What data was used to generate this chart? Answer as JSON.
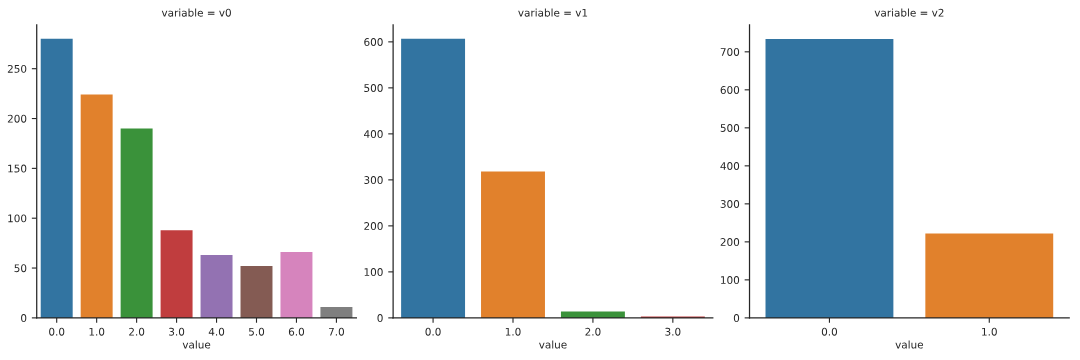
{
  "chart_data": [
    {
      "type": "bar",
      "title": "variable = v0",
      "xlabel": "value",
      "categories": [
        "0.0",
        "1.0",
        "2.0",
        "3.0",
        "4.0",
        "5.0",
        "6.0",
        "7.0"
      ],
      "values": [
        280,
        224,
        190,
        88,
        63,
        52,
        66,
        11
      ],
      "colors": [
        "#3274a1",
        "#e1812c",
        "#3a923a",
        "#c03d3e",
        "#9372b2",
        "#845b53",
        "#d684bd",
        "#7f7f7f"
      ],
      "ylim": [
        0,
        294
      ],
      "yticks": [
        0,
        50,
        100,
        150,
        200,
        250
      ]
    },
    {
      "type": "bar",
      "title": "variable = v1",
      "xlabel": "value",
      "categories": [
        "0.0",
        "1.0",
        "2.0",
        "3.0"
      ],
      "values": [
        607,
        318,
        14,
        3
      ],
      "colors": [
        "#3274a1",
        "#e1812c",
        "#3a923a",
        "#c03d3e"
      ],
      "ylim": [
        0,
        637
      ],
      "yticks": [
        0,
        100,
        200,
        300,
        400,
        500,
        600
      ]
    },
    {
      "type": "bar",
      "title": "variable = v2",
      "xlabel": "value",
      "categories": [
        "0.0",
        "1.0"
      ],
      "values": [
        734,
        222
      ],
      "colors": [
        "#3274a1",
        "#e1812c"
      ],
      "ylim": [
        0,
        771
      ],
      "yticks": [
        0,
        100,
        200,
        300,
        400,
        500,
        600,
        700
      ]
    }
  ]
}
